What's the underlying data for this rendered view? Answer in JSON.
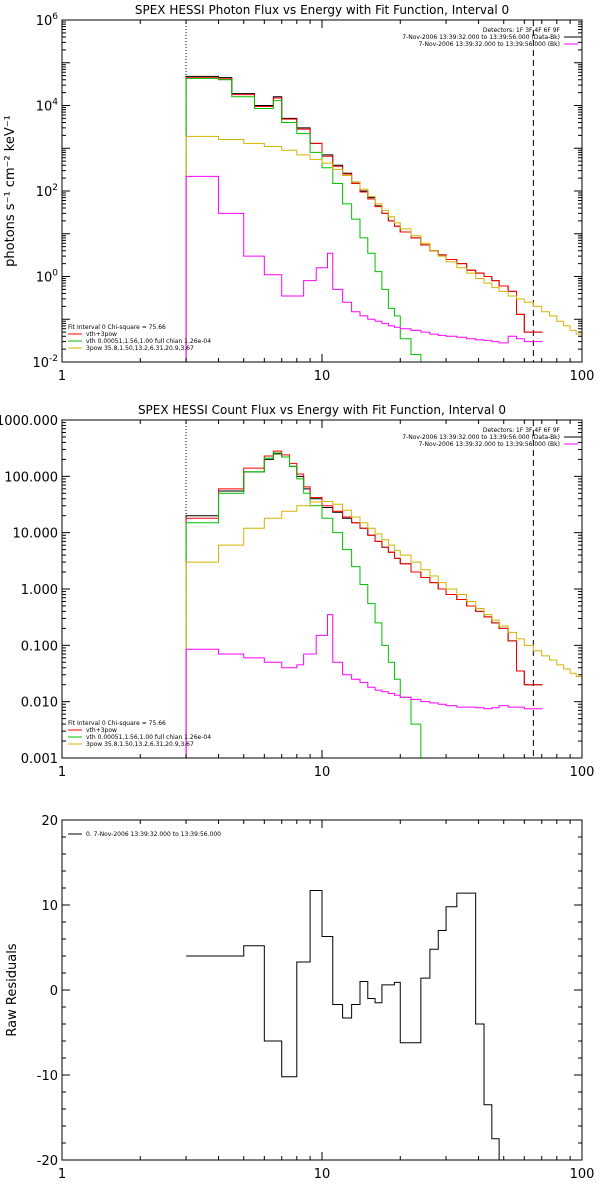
{
  "chart_data": [
    {
      "type": "line",
      "title": "SPEX HESSI Photon Flux vs Energy with Fit Function, Interval 0",
      "xlabel": "",
      "ylabel": "photons s⁻¹ cm⁻² keV⁻¹",
      "xscale": "log",
      "yscale": "log",
      "xlim": [
        1,
        100
      ],
      "ylim": [
        0.01,
        1000000
      ],
      "x_ticks": [
        {
          "v": 1,
          "label": "1"
        },
        {
          "v": 10,
          "label": "10"
        },
        {
          "v": 100,
          "label": "100"
        }
      ],
      "y_ticks": [
        {
          "v": 0.01,
          "base": "10",
          "exp": "-2"
        },
        {
          "v": 1,
          "base": "10",
          "exp": "0"
        },
        {
          "v": 100,
          "base": "10",
          "exp": "2"
        },
        {
          "v": 10000,
          "base": "10",
          "exp": "4"
        },
        {
          "v": 1000000,
          "base": "10",
          "exp": "6"
        }
      ],
      "vlines": [
        {
          "x": 3.0,
          "style": "dotted"
        },
        {
          "x": 65.0,
          "style": "dashed"
        }
      ],
      "info_lines": [
        {
          "text": "Detectors: 1F 3F 4F 6F 9F",
          "color": ""
        },
        {
          "text": "7-Nov-2006 13:39:32.000 to 13:39:56.000 (Data-Bk)",
          "color": "#000000"
        },
        {
          "text": "7-Nov-2006 13:39:32.000 to 13:39:56.000 (Bk)",
          "color": "#ff00ff"
        }
      ],
      "legend_lines": [
        {
          "text": "Fit Interval 0   Chi-square = 75.66",
          "color": ""
        },
        {
          "text": "vth+3pow",
          "color": "#ff0000"
        },
        {
          "text": "vth 0.00051,1.56,1.00  full chian 1.26e-04",
          "color": "#00c000"
        },
        {
          "text": "3pow 35.8,1.50,13.2,6.31,20.9,3.67",
          "color": "#d4b400"
        }
      ],
      "series": [
        {
          "color": "#000000",
          "x": [
            3,
            3.5,
            4,
            4.5,
            5,
            5.5,
            6,
            6.5,
            7,
            7.5,
            8,
            8.5,
            9,
            9.5,
            10,
            11,
            12,
            13,
            14,
            15,
            16,
            17,
            18,
            19,
            20,
            22,
            24,
            26,
            28,
            30,
            33,
            36,
            39,
            42,
            45,
            48,
            52,
            56,
            60,
            65
          ],
          "y": [
            48000.0,
            48000.0,
            45000.0,
            19000.0,
            19000.0,
            10000.0,
            10000.0,
            16000.0,
            5000.0,
            5000.0,
            3000.0,
            3000.0,
            1300.0,
            1300.0,
            700.0,
            400.0,
            260.0,
            160.0,
            100.0,
            70.0,
            45.0,
            30.0,
            20.0,
            15.0,
            11.0,
            8.0,
            5.5,
            4.0,
            3.2,
            2.5,
            2.0,
            1.4,
            1.2,
            1.0,
            0.8,
            0.6,
            0.45,
            0.13,
            0.05,
            0.05
          ]
        },
        {
          "color": "#ff0000",
          "x": [
            3,
            3.5,
            4,
            4.5,
            5,
            5.5,
            6,
            6.5,
            7,
            7.5,
            8,
            8.5,
            9,
            9.5,
            10,
            11,
            12,
            13,
            14,
            15,
            16,
            17,
            18,
            19,
            20,
            22,
            24,
            26,
            28,
            30,
            33,
            36,
            39,
            42,
            45,
            48,
            52,
            56,
            60,
            65
          ],
          "y": [
            45000.0,
            45000.0,
            42000.0,
            18000.0,
            18000.0,
            9500.0,
            9500.0,
            15000.0,
            4800.0,
            4800.0,
            2800.0,
            2800.0,
            1300.0,
            1300.0,
            650.0,
            380.0,
            250.0,
            150.0,
            95.0,
            65.0,
            43.0,
            30.0,
            20.0,
            15.0,
            11.0,
            8.0,
            5.5,
            4.0,
            3.2,
            2.5,
            2.0,
            1.4,
            1.2,
            1.0,
            0.8,
            0.6,
            0.45,
            0.13,
            0.05,
            0.05
          ]
        },
        {
          "color": "#00c000",
          "x": [
            3,
            3.5,
            4,
            4.5,
            5,
            5.5,
            6,
            6.5,
            7,
            7.5,
            8,
            8.5,
            9,
            9.5,
            10,
            11,
            12,
            13,
            14,
            15,
            16,
            17,
            18,
            19,
            20,
            22,
            24,
            26
          ],
          "y": [
            43000.0,
            43000.0,
            40000.0,
            16000.0,
            16000.0,
            8500.0,
            8500.0,
            13000.0,
            4000.0,
            4000.0,
            2200.0,
            2200.0,
            800.0,
            800.0,
            350.0,
            150.0,
            50.0,
            22.0,
            8.0,
            3.5,
            1.3,
            0.5,
            0.18,
            0.12,
            0.035,
            0.015,
            0.01,
            0.01
          ]
        },
        {
          "color": "#d4b400",
          "x": [
            3,
            4,
            5,
            6,
            7,
            8,
            9,
            10,
            11,
            12,
            13,
            14,
            15,
            16,
            17,
            18,
            19,
            20,
            22,
            24,
            26,
            28,
            30,
            33,
            36,
            39,
            42,
            45,
            48,
            52,
            56,
            60,
            65,
            70,
            75,
            80,
            85,
            90,
            95,
            100
          ],
          "y": [
            1900.0,
            1600.0,
            1300.0,
            1100.0,
            900.0,
            700.0,
            550.0,
            450.0,
            320.0,
            230.0,
            160.0,
            110.0,
            75.0,
            50.0,
            35.0,
            25.0,
            18.0,
            13.0,
            9.0,
            6.0,
            4.0,
            3.0,
            2.2,
            1.6,
            1.2,
            0.9,
            0.7,
            0.55,
            0.45,
            0.35,
            0.3,
            0.25,
            0.2,
            0.15,
            0.12,
            0.09,
            0.07,
            0.055,
            0.045,
            0.035
          ]
        },
        {
          "color": "#ff00ff",
          "x": [
            3,
            3.5,
            4,
            4.5,
            5,
            5.5,
            6,
            7,
            8,
            8.5,
            9,
            9.5,
            10,
            10.5,
            11,
            12,
            13,
            14,
            15,
            16,
            17,
            18,
            19,
            20,
            22,
            24,
            26,
            28,
            30,
            33,
            36,
            39,
            42,
            45,
            48,
            52,
            56,
            60,
            65
          ],
          "y": [
            220,
            220,
            30,
            30,
            3.0,
            3.0,
            1.1,
            0.35,
            0.35,
            0.8,
            0.8,
            1.6,
            1.6,
            3.5,
            0.5,
            0.25,
            0.15,
            0.12,
            0.1,
            0.09,
            0.08,
            0.07,
            0.065,
            0.06,
            0.055,
            0.05,
            0.045,
            0.042,
            0.04,
            0.038,
            0.035,
            0.033,
            0.032,
            0.03,
            0.028,
            0.04,
            0.035,
            0.03,
            0.03
          ]
        }
      ]
    },
    {
      "type": "line",
      "title": "SPEX HESSI Count Flux vs Energy with Fit Function, Interval 0",
      "xlabel": "",
      "ylabel": "",
      "xscale": "log",
      "yscale": "log",
      "xlim": [
        1,
        100
      ],
      "ylim": [
        0.001,
        1000
      ],
      "x_ticks": [
        {
          "v": 1,
          "label": "1"
        },
        {
          "v": 10,
          "label": "10"
        },
        {
          "v": 100,
          "label": "100"
        }
      ],
      "y_ticks": [
        {
          "v": 0.001,
          "label": "0.001"
        },
        {
          "v": 0.01,
          "label": "0.010"
        },
        {
          "v": 0.1,
          "label": "0.100"
        },
        {
          "v": 1,
          "label": "1.000"
        },
        {
          "v": 10,
          "label": "10.000"
        },
        {
          "v": 100,
          "label": "100.000"
        },
        {
          "v": 1000,
          "label": "1000.000"
        }
      ],
      "vlines": [
        {
          "x": 3.0,
          "style": "dotted"
        },
        {
          "x": 65.0,
          "style": "dashed"
        }
      ],
      "info_lines": [
        {
          "text": "Detectors: 1F 3F 4F 6F 9F",
          "color": ""
        },
        {
          "text": "7-Nov-2006 13:39:32.000 to 13:39:56.000 (Data-Bk)",
          "color": "#000000"
        },
        {
          "text": "7-Nov-2006 13:39:32.000 to 13:39:56.000 (Bk)",
          "color": "#ff00ff"
        }
      ],
      "legend_lines": [
        {
          "text": "Fit Interval 0   Chi-square = 75.66",
          "color": ""
        },
        {
          "text": "vth+3pow",
          "color": "#ff0000"
        },
        {
          "text": "vth 0.00051,1.56,1.00  full chian 1.26e-04",
          "color": "#00c000"
        },
        {
          "text": "3pow 35.8,1.50,13.2,6.31,20.9,3.67",
          "color": "#d4b400"
        }
      ],
      "series": [
        {
          "color": "#000000",
          "x": [
            3,
            4,
            5,
            6,
            6.5,
            7,
            7.5,
            8,
            8.5,
            9,
            9.5,
            10,
            11,
            12,
            13,
            14,
            15,
            16,
            17,
            18,
            19,
            20,
            22,
            24,
            26,
            28,
            30,
            33,
            36,
            39,
            42,
            45,
            48,
            52,
            56,
            60,
            65
          ],
          "y": [
            20,
            55,
            120,
            200,
            250,
            220,
            150,
            100,
            60,
            40,
            40,
            28,
            23,
            18,
            15,
            12,
            9,
            7,
            5.5,
            4.5,
            3.5,
            2.8,
            2.0,
            1.6,
            1.3,
            1.0,
            0.8,
            0.65,
            0.5,
            0.4,
            0.32,
            0.25,
            0.2,
            0.12,
            0.035,
            0.02,
            0.02
          ]
        },
        {
          "color": "#ff0000",
          "x": [
            3,
            4,
            5,
            6,
            6.5,
            7,
            7.5,
            8,
            8.5,
            9,
            9.5,
            10,
            11,
            12,
            13,
            14,
            15,
            16,
            17,
            18,
            19,
            20,
            22,
            24,
            26,
            28,
            30,
            33,
            36,
            39,
            42,
            45,
            48,
            52,
            56,
            60,
            65
          ],
          "y": [
            18,
            60,
            140,
            230,
            280,
            240,
            170,
            110,
            65,
            42,
            42,
            30,
            24,
            19,
            15,
            12,
            9,
            7,
            5.5,
            4.5,
            3.5,
            2.8,
            2.0,
            1.6,
            1.3,
            1.0,
            0.8,
            0.65,
            0.5,
            0.4,
            0.32,
            0.25,
            0.2,
            0.12,
            0.035,
            0.02,
            0.02
          ]
        },
        {
          "color": "#00c000",
          "x": [
            3,
            4,
            5,
            6,
            6.5,
            7,
            7.5,
            8,
            8.5,
            9,
            9.5,
            10,
            11,
            12,
            13,
            14,
            15,
            16,
            17,
            18,
            19,
            20,
            22,
            24,
            26
          ],
          "y": [
            15,
            50,
            120,
            210,
            260,
            220,
            150,
            90,
            50,
            30,
            30,
            18,
            10,
            5,
            2.5,
            1.2,
            0.55,
            0.25,
            0.1,
            0.05,
            0.025,
            0.012,
            0.004,
            0.001,
            0.001
          ]
        },
        {
          "color": "#d4b400",
          "x": [
            3,
            4,
            5,
            6,
            7,
            8,
            9,
            10,
            11,
            12,
            13,
            14,
            15,
            16,
            17,
            18,
            19,
            20,
            22,
            24,
            26,
            28,
            30,
            33,
            36,
            39,
            42,
            45,
            48,
            52,
            56,
            60,
            65,
            70,
            75,
            80,
            85,
            90,
            95,
            100
          ],
          "y": [
            3,
            6,
            12,
            18,
            24,
            30,
            35,
            36,
            32,
            25,
            19,
            15,
            12,
            9.5,
            7.5,
            6,
            4.8,
            4,
            3,
            2.2,
            1.7,
            1.3,
            1.0,
            0.8,
            0.6,
            0.45,
            0.35,
            0.28,
            0.22,
            0.17,
            0.13,
            0.1,
            0.08,
            0.065,
            0.055,
            0.045,
            0.038,
            0.032,
            0.028,
            0.025
          ]
        },
        {
          "color": "#ff00ff",
          "x": [
            3,
            4,
            5,
            6,
            7,
            8,
            8.5,
            9,
            9.5,
            10,
            10.5,
            11,
            12,
            13,
            14,
            15,
            16,
            17,
            18,
            19,
            20,
            22,
            24,
            26,
            28,
            30,
            33,
            36,
            39,
            42,
            45,
            48,
            52,
            56,
            60,
            65
          ],
          "y": [
            0.085,
            0.07,
            0.06,
            0.05,
            0.04,
            0.045,
            0.07,
            0.07,
            0.15,
            0.15,
            0.35,
            0.05,
            0.03,
            0.025,
            0.022,
            0.018,
            0.016,
            0.015,
            0.014,
            0.013,
            0.012,
            0.011,
            0.01,
            0.0095,
            0.009,
            0.0085,
            0.008,
            0.008,
            0.0078,
            0.0075,
            0.0078,
            0.0085,
            0.008,
            0.008,
            0.0075,
            0.0075
          ]
        }
      ]
    },
    {
      "type": "line",
      "title": "",
      "xlabel": "",
      "ylabel": "Raw Residuals",
      "xscale": "log",
      "yscale": "linear",
      "xlim": [
        1,
        100
      ],
      "ylim": [
        -20,
        20
      ],
      "x_ticks": [
        {
          "v": 1,
          "label": "1"
        },
        {
          "v": 10,
          "label": "10"
        },
        {
          "v": 100,
          "label": "100"
        }
      ],
      "y_ticks": [
        {
          "v": -20,
          "label": "-20"
        },
        {
          "v": -10,
          "label": "-10"
        },
        {
          "v": 0,
          "label": "0"
        },
        {
          "v": 10,
          "label": "10"
        },
        {
          "v": 20,
          "label": "20"
        }
      ],
      "vlines": [],
      "info_lines": [],
      "legend_lines": [
        {
          "text": "0. 7-Nov-2006 13:39:32.000 to 13:39:56.000",
          "color": "#000000"
        }
      ],
      "series": [
        {
          "color": "#000000",
          "x": [
            3,
            4,
            5,
            6,
            7,
            8,
            8.5,
            9,
            9.5,
            10,
            11,
            12,
            13,
            14,
            15,
            16,
            17,
            18,
            19,
            20,
            22,
            24,
            26,
            28,
            30,
            33,
            36,
            39,
            42,
            45,
            48,
            52,
            56,
            60,
            65
          ],
          "y": [
            4,
            4,
            5.2,
            -6,
            -10.2,
            3.3,
            3.3,
            11.7,
            11.7,
            6.3,
            -1.7,
            -3.3,
            -1.7,
            1,
            -1,
            -1.5,
            0.6,
            0.6,
            0.9,
            -6.2,
            -6.2,
            1.4,
            4.8,
            7,
            9.8,
            11.4,
            11.4,
            -4,
            -13.5,
            -17.5,
            -20,
            -20,
            -20,
            -20,
            -20
          ]
        }
      ]
    }
  ]
}
